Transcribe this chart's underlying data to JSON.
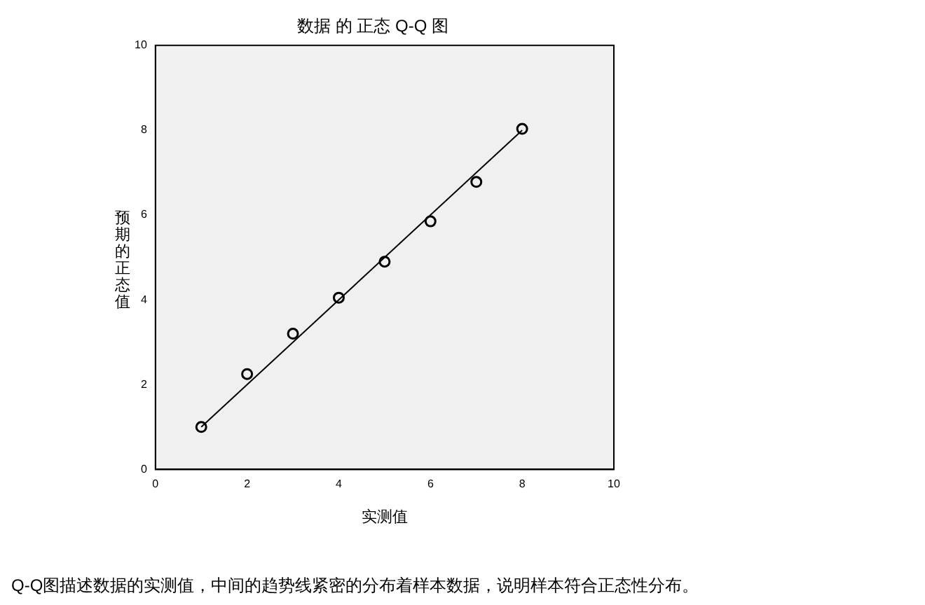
{
  "chart_data": {
    "type": "scatter",
    "title": "数据 的 正态 Q-Q 图",
    "xlabel": "实测值",
    "ylabel": "预期的正态值",
    "xlim": [
      0,
      10
    ],
    "xticks": [
      0,
      2,
      4,
      6,
      8,
      10
    ],
    "ylim": [
      0,
      10
    ],
    "yticks": [
      0,
      2,
      4,
      6,
      8,
      10
    ],
    "grid": false,
    "legend": false,
    "marker": "circle",
    "series": [
      {
        "color": "#000000",
        "x": [
          1,
          2,
          3,
          4,
          5,
          6,
          7,
          8
        ],
        "values": [
          1,
          2.25,
          3.2,
          4.05,
          4.9,
          5.85,
          6.78,
          8.03
        ]
      },
      {
        "type": "line",
        "color": "#000000",
        "x": [
          1,
          8
        ],
        "values": [
          1,
          8
        ],
        "marker": "none",
        "line_style": "solid"
      }
    ],
    "annotations": [
      "Q-Q图描述数据的实测值，中间的趋势线紧密的分布着样本数据，说明样本符合正态性分布。"
    ]
  }
}
